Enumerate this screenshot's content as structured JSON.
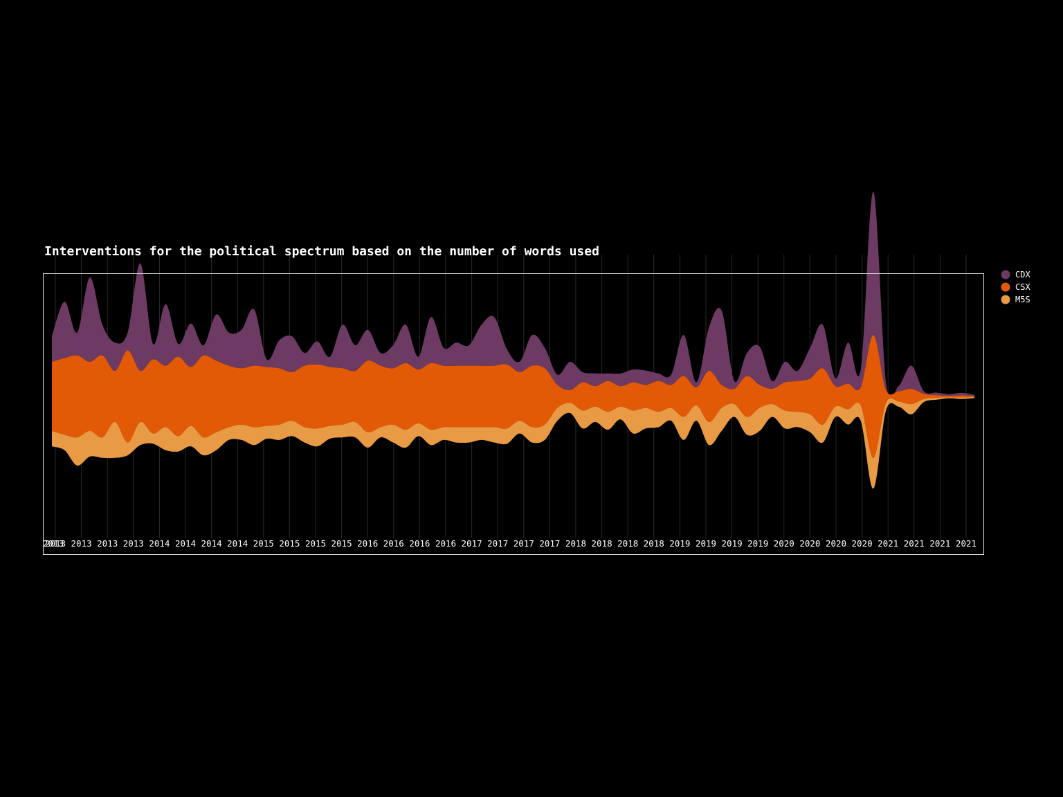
{
  "chart_data": {
    "type": "area",
    "subtype": "streamgraph",
    "title": "Interventions for the political spectrum based on the number of words used",
    "xlabel": "",
    "ylabel": "",
    "grid": "vertical",
    "legend_position": "right",
    "x_tick_labels": [
      "2013",
      "2013",
      "2013",
      "2013",
      "2014",
      "2014",
      "2014",
      "2014",
      "2015",
      "2015",
      "2015",
      "2015",
      "2016",
      "2016",
      "2016",
      "2016",
      "2017",
      "2017",
      "2017",
      "2017",
      "2018",
      "2018",
      "2018",
      "2018",
      "2019",
      "2019",
      "2019",
      "2019",
      "2020",
      "2020",
      "2020",
      "2020",
      "2021",
      "2021",
      "2021",
      "2021"
    ],
    "n_points": 74,
    "series": [
      {
        "name": "CDX",
        "color": "#6d3a64",
        "values": [
          50,
          110,
          45,
          165,
          60,
          55,
          35,
          210,
          30,
          120,
          25,
          85,
          20,
          90,
          65,
          75,
          110,
          15,
          55,
          70,
          25,
          45,
          20,
          85,
          50,
          60,
          25,
          45,
          75,
          25,
          90,
          35,
          45,
          40,
          80,
          95,
          30,
          20,
          60,
          40,
          20,
          55,
          20,
          25,
          15,
          25,
          25,
          28,
          15,
          20,
          80,
          10,
          85,
          145,
          15,
          45,
          75,
          15,
          40,
          20,
          60,
          85,
          15,
          80,
          35,
          280,
          15,
          10,
          45,
          5,
          5,
          3,
          5,
          2
        ]
      },
      {
        "name": "CSX",
        "color": "#e35a06",
        "values": [
          135,
          150,
          160,
          135,
          160,
          100,
          180,
          100,
          145,
          120,
          155,
          115,
          160,
          140,
          120,
          110,
          120,
          115,
          110,
          95,
          120,
          125,
          115,
          110,
          100,
          140,
          120,
          110,
          130,
          105,
          130,
          120,
          120,
          120,
          120,
          120,
          125,
          95,
          120,
          110,
          45,
          25,
          55,
          40,
          60,
          40,
          55,
          45,
          60,
          45,
          80,
          35,
          100,
          45,
          30,
          80,
          45,
          30,
          55,
          60,
          70,
          110,
          40,
          50,
          35,
          240,
          25,
          20,
          30,
          10,
          5,
          3,
          4,
          2
        ]
      },
      {
        "name": "M5S",
        "color": "#e89a45",
        "values": [
          30,
          30,
          55,
          50,
          40,
          70,
          25,
          45,
          20,
          45,
          30,
          40,
          35,
          35,
          25,
          30,
          35,
          25,
          30,
          30,
          30,
          35,
          25,
          25,
          30,
          30,
          20,
          35,
          35,
          25,
          30,
          25,
          30,
          30,
          25,
          30,
          30,
          25,
          30,
          30,
          25,
          20,
          35,
          30,
          35,
          25,
          45,
          40,
          30,
          25,
          45,
          30,
          45,
          45,
          25,
          35,
          45,
          25,
          35,
          30,
          35,
          35,
          20,
          30,
          30,
          60,
          15,
          10,
          20,
          6,
          4,
          2,
          3,
          2
        ]
      }
    ]
  }
}
